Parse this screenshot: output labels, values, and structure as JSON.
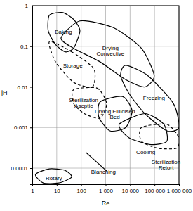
{
  "chart_data": {
    "type": "line",
    "log": true,
    "grid": true,
    "color": "#000000",
    "x_label": "Re",
    "y_label": "jH",
    "xlim": [
      1,
      1000000
    ],
    "ylim": [
      4e-05,
      1
    ],
    "xticks": [
      1,
      10,
      100,
      {
        "value": 1000,
        "label": "1 000"
      },
      {
        "value": 10000,
        "label": "10 000"
      },
      {
        "value": 100000,
        "label": "100 000"
      },
      {
        "value": 1000000,
        "label": "1 000 000"
      }
    ],
    "yticks": [
      0.0001,
      0.001,
      0.01,
      0.1,
      1
    ],
    "series": [
      {
        "name": "Baking",
        "type": "region",
        "line_style": "solid",
        "x": [
          5,
          17,
          49,
          89,
          49,
          22,
          9,
          4.5
        ],
        "values": [
          0.58,
          0.68,
          0.46,
          0.24,
          0.089,
          0.073,
          0.11,
          0.24
        ]
      },
      {
        "name": "Drying Convective",
        "type": "region",
        "line_style": "solid",
        "x": [
          15,
          89,
          2000,
          29000,
          97000,
          40000,
          6600,
          600,
          49
        ],
        "values": [
          0.16,
          0.42,
          0.29,
          0.089,
          0.019,
          0.01,
          0.015,
          0.041,
          0.089
        ]
      },
      {
        "name": "Freezing",
        "type": "region",
        "line_style": "solid",
        "x": [
          6600,
          53000,
          590000,
          1000000,
          320000,
          40000,
          8900,
          4100
        ],
        "values": [
          0.034,
          0.019,
          0.0039,
          0.001,
          0.00083,
          0.0022,
          0.007,
          0.019
        ]
      },
      {
        "name": "Storage",
        "type": "region",
        "line_style": "dashed",
        "x": [
          5,
          41,
          330,
          290,
          49,
          9
        ],
        "values": [
          0.13,
          0.073,
          0.028,
          0.01,
          0.013,
          0.041
        ]
      },
      {
        "name": "Sterilization Aseptic",
        "type": "region",
        "line_style": "dashed",
        "x": [
          49,
          450,
          1100,
          600,
          135,
          49
        ],
        "values": [
          0.0085,
          0.0093,
          0.0039,
          0.0017,
          0.0022,
          0.0039
        ]
      },
      {
        "name": "Drying Fluidised Bed",
        "type": "region",
        "line_style": "solid",
        "x": [
          600,
          4900,
          12000,
          6600,
          1500,
          530
        ],
        "values": [
          0.0043,
          0.0058,
          0.0026,
          0.001,
          0.00083,
          0.0018
        ]
      },
      {
        "name": "Cooling",
        "type": "region",
        "line_style": "solid",
        "x": [
          3600,
          40000,
          240000,
          320000,
          72000,
          8900
        ],
        "values": [
          0.0012,
          0.0022,
          0.0012,
          0.00046,
          0.00038,
          0.00056
        ]
      },
      {
        "name": "Sterilization Retort",
        "type": "region",
        "line_style": "dashed",
        "x": [
          29000,
          320000,
          1000000,
          790000,
          130000,
          29000
        ],
        "values": [
          0.001,
          0.0012,
          0.00056,
          0.00031,
          0.00031,
          0.00046
        ]
      },
      {
        "name": "Blanching",
        "type": "line",
        "line_style": "solid",
        "x": [
          160,
          1100
        ],
        "values": [
          0.00024,
          8.5e-05
        ]
      },
      {
        "name": "Rotary",
        "type": "region",
        "line_style": "solid",
        "x": [
          1.35,
          5,
          22,
          41,
          12,
          2.8
        ],
        "values": [
          7e-05,
          9.6e-05,
          8.8e-05,
          6e-05,
          4.3e-05,
          4.3e-05
        ]
      }
    ]
  }
}
